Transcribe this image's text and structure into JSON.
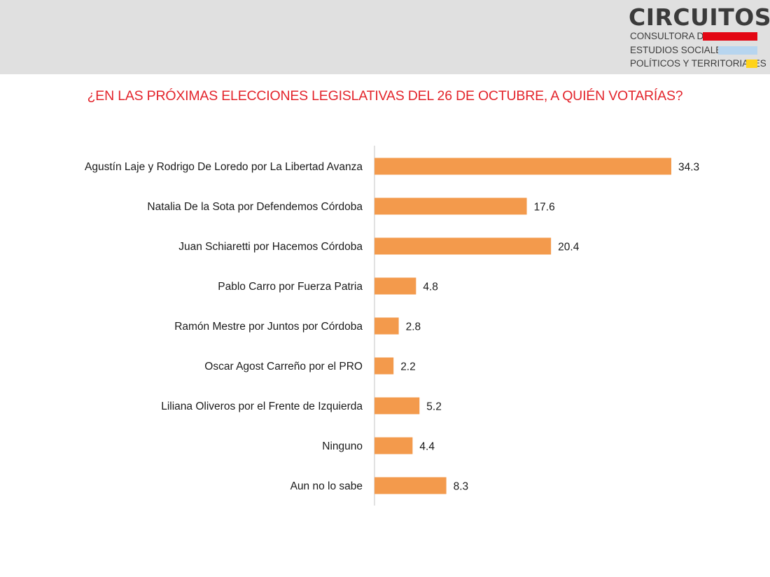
{
  "branding": {
    "name": "CIRCUITOS",
    "tagline_lines": [
      "CONSULTORA DE",
      "ESTUDIOS SOCIALES,",
      "POLÍTICOS Y TERRITORIALES"
    ],
    "colors": {
      "red": "#e30613",
      "blue": "#b7d5ef",
      "yellow": "#ffd31a"
    }
  },
  "chart_data": {
    "type": "bar",
    "orientation": "horizontal",
    "title": "¿EN LAS PRÓXIMAS ELECCIONES LEGISLATIVAS DEL 26 DE OCTUBRE, A QUIÉN VOTARÍAS?",
    "categories": [
      "Agustín Laje y Rodrigo De Loredo por La Libertad Avanza",
      "Natalia De la Sota por Defendemos Córdoba",
      "Juan Schiaretti por Hacemos Córdoba",
      "Pablo Carro por Fuerza Patria",
      "Ramón Mestre por Juntos por Córdoba",
      "Oscar Agost Carreño por el PRO",
      "Liliana Oliveros por el Frente de Izquierda",
      "Ninguno",
      "Aun no lo sabe"
    ],
    "values": [
      34.3,
      17.6,
      20.4,
      4.8,
      2.8,
      2.2,
      5.2,
      4.4,
      8.3
    ],
    "data_labels": [
      "34.3",
      "17.6",
      "20.4",
      "4.8",
      "2.8",
      "2.2",
      "5.2",
      "4.4",
      "8.3"
    ],
    "xlim": [
      0,
      35
    ],
    "grid": false,
    "legend": "none",
    "bar_color": "#f39a4c",
    "title_color": "#e3242b"
  }
}
